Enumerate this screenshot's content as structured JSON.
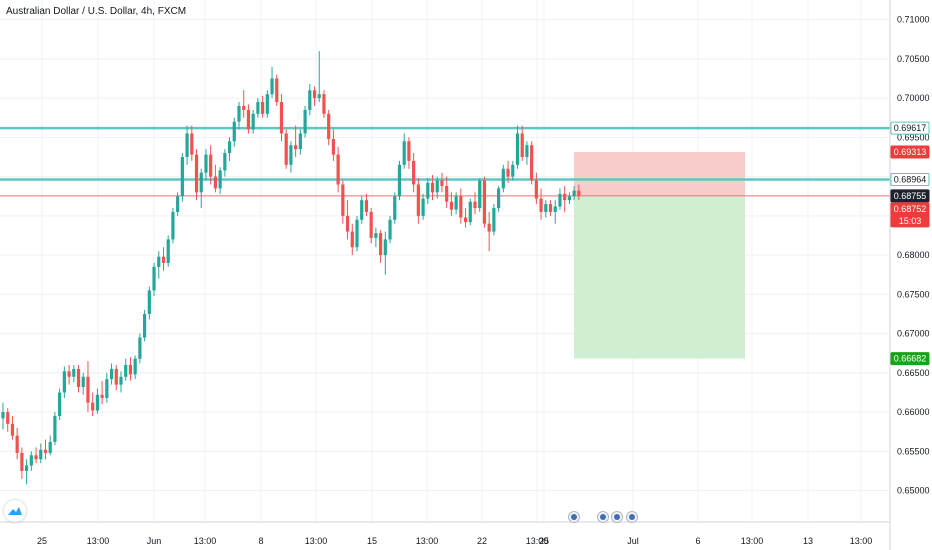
{
  "header": {
    "title": "Australian Dollar / U.S. Dollar, 4h, FXCM"
  },
  "colors": {
    "up": "#26a69a",
    "down": "#ef5350",
    "level_line": "#5fc7c2",
    "stop_zone": "#f8c3c3",
    "target_zone": "#cbeccc",
    "stop_tag": "#ef3b3b",
    "target_tag": "#17a517",
    "price_tag": "#1e222d",
    "grid": "#eef0f3"
  },
  "chart_data": {
    "type": "candlestick",
    "symbol": "Australian Dollar / U.S. Dollar",
    "interval": "4h",
    "source": "FXCM",
    "ylim": [
      0.646,
      0.7125
    ],
    "y_ticks": [
      "0.71000",
      "0.70500",
      "0.70000",
      "0.69500",
      "0.69000",
      "0.68500",
      "0.68000",
      "0.67500",
      "0.67000",
      "0.66500",
      "0.66000",
      "0.65500",
      "0.65000"
    ],
    "x_ticks": [
      "25",
      "13:00",
      "Jun",
      "13:00",
      "8",
      "13:00",
      "15",
      "13:00",
      "22",
      "13:00",
      "25",
      "Jul",
      "6",
      "13:00",
      "13",
      "13:00"
    ],
    "grid": true,
    "levels": [
      0.69617,
      0.68964
    ],
    "position": {
      "side": "short",
      "entry": 0.68755,
      "stop": 0.69313,
      "target": 0.66682
    },
    "price_labels": [
      {
        "text": "0.69617",
        "style": "level"
      },
      {
        "text": "0.69313",
        "style": "stop"
      },
      {
        "text": "0.68964",
        "style": "level"
      },
      {
        "text": "0.68755",
        "style": "entry"
      },
      {
        "text": "0.68752",
        "style": "last"
      },
      {
        "text": "15:03",
        "style": "countdown"
      },
      {
        "text": "0.66682",
        "style": "target"
      }
    ],
    "ohlc": [
      [
        0.6592,
        0.6612,
        0.6578,
        0.66
      ],
      [
        0.66,
        0.6605,
        0.6575,
        0.6585
      ],
      [
        0.6585,
        0.6595,
        0.6565,
        0.657
      ],
      [
        0.657,
        0.658,
        0.654,
        0.6548
      ],
      [
        0.6548,
        0.6555,
        0.6515,
        0.6525
      ],
      [
        0.6525,
        0.654,
        0.6508,
        0.6532
      ],
      [
        0.6532,
        0.655,
        0.6525,
        0.6545
      ],
      [
        0.6545,
        0.6555,
        0.6535,
        0.654
      ],
      [
        0.654,
        0.656,
        0.6535,
        0.6552
      ],
      [
        0.6552,
        0.6565,
        0.654,
        0.6548
      ],
      [
        0.6548,
        0.657,
        0.6545,
        0.6562
      ],
      [
        0.6562,
        0.66,
        0.6558,
        0.6595
      ],
      [
        0.6595,
        0.663,
        0.659,
        0.6625
      ],
      [
        0.6625,
        0.6658,
        0.6618,
        0.6652
      ],
      [
        0.6652,
        0.666,
        0.6635,
        0.6645
      ],
      [
        0.6645,
        0.666,
        0.6638,
        0.6655
      ],
      [
        0.6655,
        0.666,
        0.6625,
        0.6632
      ],
      [
        0.6632,
        0.665,
        0.6622,
        0.6645
      ],
      [
        0.6645,
        0.6665,
        0.66,
        0.6612
      ],
      [
        0.6612,
        0.6625,
        0.6595,
        0.6602
      ],
      [
        0.6602,
        0.663,
        0.6598,
        0.6622
      ],
      [
        0.6622,
        0.664,
        0.661,
        0.6618
      ],
      [
        0.6618,
        0.665,
        0.6612,
        0.6642
      ],
      [
        0.6642,
        0.6662,
        0.6635,
        0.6655
      ],
      [
        0.6655,
        0.666,
        0.6628,
        0.6635
      ],
      [
        0.6635,
        0.6652,
        0.6625,
        0.6645
      ],
      [
        0.6645,
        0.6668,
        0.664,
        0.666
      ],
      [
        0.666,
        0.667,
        0.664,
        0.6648
      ],
      [
        0.6648,
        0.6672,
        0.6642,
        0.6668
      ],
      [
        0.6668,
        0.67,
        0.6662,
        0.6695
      ],
      [
        0.6695,
        0.673,
        0.669,
        0.6725
      ],
      [
        0.6725,
        0.676,
        0.6718,
        0.6755
      ],
      [
        0.6755,
        0.679,
        0.6748,
        0.6785
      ],
      [
        0.6785,
        0.6805,
        0.677,
        0.6798
      ],
      [
        0.6798,
        0.681,
        0.678,
        0.679
      ],
      [
        0.679,
        0.6825,
        0.6785,
        0.682
      ],
      [
        0.682,
        0.686,
        0.6815,
        0.6855
      ],
      [
        0.6855,
        0.688,
        0.685,
        0.6875
      ],
      [
        0.6875,
        0.693,
        0.6868,
        0.6925
      ],
      [
        0.6925,
        0.6965,
        0.6915,
        0.6955
      ],
      [
        0.6955,
        0.6965,
        0.692,
        0.6928
      ],
      [
        0.6928,
        0.6935,
        0.687,
        0.688
      ],
      [
        0.688,
        0.691,
        0.686,
        0.6905
      ],
      [
        0.6905,
        0.6935,
        0.6895,
        0.6928
      ],
      [
        0.6928,
        0.694,
        0.689,
        0.69
      ],
      [
        0.69,
        0.6915,
        0.688,
        0.6885
      ],
      [
        0.6885,
        0.6912,
        0.6878,
        0.6908
      ],
      [
        0.6908,
        0.6935,
        0.69,
        0.693
      ],
      [
        0.693,
        0.695,
        0.692,
        0.6945
      ],
      [
        0.6945,
        0.6975,
        0.6938,
        0.697
      ],
      [
        0.697,
        0.6995,
        0.696,
        0.699
      ],
      [
        0.699,
        0.701,
        0.6975,
        0.6985
      ],
      [
        0.6985,
        0.6992,
        0.6955,
        0.696
      ],
      [
        0.696,
        0.6985,
        0.6955,
        0.698
      ],
      [
        0.698,
        0.7,
        0.6975,
        0.6995
      ],
      [
        0.6995,
        0.7003,
        0.6975,
        0.698
      ],
      [
        0.698,
        0.701,
        0.6975,
        0.7005
      ],
      [
        0.7005,
        0.704,
        0.7,
        0.7025
      ],
      [
        0.7025,
        0.703,
        0.699,
        0.6995
      ],
      [
        0.6995,
        0.7005,
        0.6945,
        0.6955
      ],
      [
        0.6955,
        0.696,
        0.691,
        0.6915
      ],
      [
        0.6915,
        0.6945,
        0.6905,
        0.694
      ],
      [
        0.694,
        0.6965,
        0.6925,
        0.6935
      ],
      [
        0.6935,
        0.696,
        0.6928,
        0.6955
      ],
      [
        0.6955,
        0.699,
        0.695,
        0.6985
      ],
      [
        0.6985,
        0.7018,
        0.6978,
        0.701
      ],
      [
        0.701,
        0.7015,
        0.699,
        0.7
      ],
      [
        0.7,
        0.706,
        0.6995,
        0.7005
      ],
      [
        0.7005,
        0.701,
        0.6975,
        0.698
      ],
      [
        0.698,
        0.6985,
        0.694,
        0.6948
      ],
      [
        0.6948,
        0.696,
        0.692,
        0.6928
      ],
      [
        0.6928,
        0.6938,
        0.688,
        0.689
      ],
      [
        0.689,
        0.6895,
        0.684,
        0.685
      ],
      [
        0.685,
        0.687,
        0.682,
        0.683
      ],
      [
        0.683,
        0.684,
        0.68,
        0.681
      ],
      [
        0.681,
        0.685,
        0.6805,
        0.6845
      ],
      [
        0.6845,
        0.6875,
        0.684,
        0.687
      ],
      [
        0.687,
        0.6878,
        0.685,
        0.6855
      ],
      [
        0.6855,
        0.686,
        0.6815,
        0.6822
      ],
      [
        0.6822,
        0.6835,
        0.681,
        0.6828
      ],
      [
        0.6828,
        0.6832,
        0.679,
        0.68
      ],
      [
        0.68,
        0.683,
        0.6775,
        0.682
      ],
      [
        0.682,
        0.685,
        0.6815,
        0.6845
      ],
      [
        0.6845,
        0.688,
        0.684,
        0.6875
      ],
      [
        0.6875,
        0.692,
        0.687,
        0.6915
      ],
      [
        0.6915,
        0.6955,
        0.691,
        0.6945
      ],
      [
        0.6945,
        0.695,
        0.691,
        0.692
      ],
      [
        0.692,
        0.693,
        0.688,
        0.689
      ],
      [
        0.689,
        0.6898,
        0.684,
        0.685
      ],
      [
        0.685,
        0.6878,
        0.6845,
        0.6872
      ],
      [
        0.6872,
        0.6898,
        0.6865,
        0.6892
      ],
      [
        0.6892,
        0.6902,
        0.687,
        0.688
      ],
      [
        0.688,
        0.69,
        0.6872,
        0.6895
      ],
      [
        0.6895,
        0.6905,
        0.688,
        0.6888
      ],
      [
        0.6888,
        0.69,
        0.686,
        0.6868
      ],
      [
        0.6868,
        0.688,
        0.685,
        0.6858
      ],
      [
        0.6858,
        0.688,
        0.6852,
        0.6875
      ],
      [
        0.6875,
        0.6885,
        0.684,
        0.6848
      ],
      [
        0.6848,
        0.686,
        0.6835,
        0.6842
      ],
      [
        0.6842,
        0.6872,
        0.6838,
        0.6868
      ],
      [
        0.6868,
        0.688,
        0.6852,
        0.686
      ],
      [
        0.686,
        0.6898,
        0.6855,
        0.6895
      ],
      [
        0.6895,
        0.69,
        0.6835,
        0.684
      ],
      [
        0.684,
        0.6855,
        0.6805,
        0.683
      ],
      [
        0.683,
        0.6865,
        0.6825,
        0.686
      ],
      [
        0.686,
        0.6888,
        0.6855,
        0.6885
      ],
      [
        0.6885,
        0.6915,
        0.688,
        0.691
      ],
      [
        0.691,
        0.692,
        0.6892,
        0.69
      ],
      [
        0.69,
        0.692,
        0.6895,
        0.6915
      ],
      [
        0.6915,
        0.6965,
        0.691,
        0.6955
      ],
      [
        0.6955,
        0.6965,
        0.692,
        0.6925
      ],
      [
        0.6925,
        0.6945,
        0.6915,
        0.694
      ],
      [
        0.694,
        0.6945,
        0.689,
        0.6895
      ],
      [
        0.6895,
        0.6905,
        0.6865,
        0.6872
      ],
      [
        0.6872,
        0.6885,
        0.6845,
        0.6855
      ],
      [
        0.6855,
        0.687,
        0.6848,
        0.6865
      ],
      [
        0.6865,
        0.687,
        0.685,
        0.6855
      ],
      [
        0.6855,
        0.687,
        0.684,
        0.6862
      ],
      [
        0.6862,
        0.6885,
        0.6858,
        0.6878
      ],
      [
        0.6878,
        0.6888,
        0.6855,
        0.687
      ],
      [
        0.687,
        0.688,
        0.6865,
        0.6875
      ],
      [
        0.6875,
        0.6888,
        0.687,
        0.6882
      ],
      [
        0.6882,
        0.689,
        0.687,
        0.6876
      ]
    ]
  }
}
